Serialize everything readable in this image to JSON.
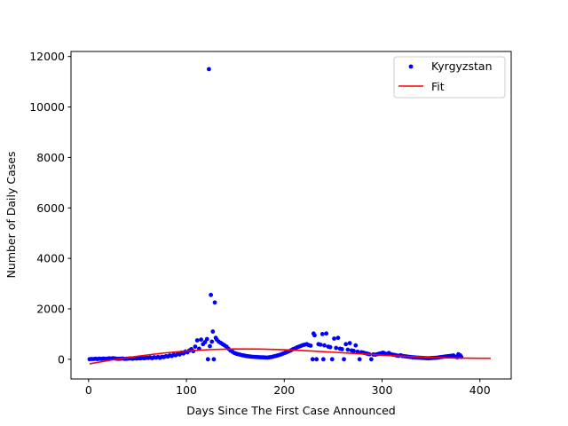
{
  "chart_data": {
    "type": "scatter",
    "title": "",
    "xlabel": "Days Since The First Case Announced",
    "ylabel": "Number of Daily Cases",
    "xlim": [
      -18,
      432
    ],
    "ylim": [
      -780,
      12200
    ],
    "xticks": [
      0,
      100,
      200,
      300,
      400
    ],
    "yticks": [
      0,
      2000,
      4000,
      6000,
      8000,
      10000,
      12000
    ],
    "grid": false,
    "legend_position": "top-right",
    "series": [
      {
        "name": "Kyrgyzstan",
        "kind": "scatter",
        "color": "#0000ff",
        "points": [
          [
            1,
            3
          ],
          [
            3,
            12
          ],
          [
            5,
            8
          ],
          [
            7,
            18
          ],
          [
            9,
            10
          ],
          [
            11,
            25
          ],
          [
            13,
            15
          ],
          [
            15,
            30
          ],
          [
            17,
            20
          ],
          [
            19,
            22
          ],
          [
            21,
            35
          ],
          [
            23,
            28
          ],
          [
            25,
            40
          ],
          [
            27,
            32
          ],
          [
            29,
            20
          ],
          [
            31,
            18
          ],
          [
            33,
            25
          ],
          [
            35,
            30
          ],
          [
            37,
            15
          ],
          [
            39,
            22
          ],
          [
            41,
            28
          ],
          [
            43,
            35
          ],
          [
            45,
            20
          ],
          [
            47,
            40
          ],
          [
            49,
            30
          ],
          [
            51,
            45
          ],
          [
            53,
            38
          ],
          [
            55,
            50
          ],
          [
            57,
            42
          ],
          [
            59,
            60
          ],
          [
            61,
            55
          ],
          [
            63,
            70
          ],
          [
            65,
            45
          ],
          [
            67,
            80
          ],
          [
            69,
            65
          ],
          [
            71,
            90
          ],
          [
            73,
            60
          ],
          [
            75,
            100
          ],
          [
            77,
            85
          ],
          [
            79,
            120
          ],
          [
            81,
            110
          ],
          [
            83,
            150
          ],
          [
            85,
            130
          ],
          [
            87,
            180
          ],
          [
            89,
            160
          ],
          [
            91,
            220
          ],
          [
            93,
            190
          ],
          [
            95,
            260
          ],
          [
            97,
            230
          ],
          [
            99,
            310
          ],
          [
            101,
            280
          ],
          [
            103,
            350
          ],
          [
            105,
            400
          ],
          [
            107,
            320
          ],
          [
            109,
            500
          ],
          [
            111,
            750
          ],
          [
            113,
            420
          ],
          [
            115,
            780
          ],
          [
            117,
            600
          ],
          [
            119,
            680
          ],
          [
            121,
            800
          ],
          [
            122,
            0
          ],
          [
            123,
            11500
          ],
          [
            124,
            520
          ],
          [
            125,
            2550
          ],
          [
            126,
            700
          ],
          [
            127,
            1100
          ],
          [
            128,
            0
          ],
          [
            129,
            2250
          ],
          [
            130,
            850
          ],
          [
            131,
            780
          ],
          [
            133,
            700
          ],
          [
            135,
            650
          ],
          [
            137,
            600
          ],
          [
            139,
            550
          ],
          [
            141,
            500
          ],
          [
            143,
            420
          ],
          [
            145,
            350
          ],
          [
            147,
            300
          ],
          [
            149,
            250
          ],
          [
            151,
            220
          ],
          [
            153,
            200
          ],
          [
            155,
            180
          ],
          [
            157,
            160
          ],
          [
            159,
            150
          ],
          [
            161,
            130
          ],
          [
            163,
            120
          ],
          [
            165,
            110
          ],
          [
            167,
            100
          ],
          [
            169,
            95
          ],
          [
            171,
            90
          ],
          [
            173,
            85
          ],
          [
            175,
            80
          ],
          [
            177,
            78
          ],
          [
            179,
            75
          ],
          [
            181,
            70
          ],
          [
            183,
            68
          ],
          [
            185,
            80
          ],
          [
            187,
            90
          ],
          [
            189,
            110
          ],
          [
            191,
            130
          ],
          [
            193,
            150
          ],
          [
            195,
            170
          ],
          [
            197,
            200
          ],
          [
            199,
            230
          ],
          [
            201,
            260
          ],
          [
            203,
            290
          ],
          [
            205,
            320
          ],
          [
            207,
            360
          ],
          [
            209,
            400
          ],
          [
            211,
            430
          ],
          [
            213,
            470
          ],
          [
            215,
            500
          ],
          [
            217,
            530
          ],
          [
            219,
            560
          ],
          [
            221,
            580
          ],
          [
            223,
            600
          ],
          [
            225,
            560
          ],
          [
            227,
            540
          ],
          [
            229,
            0
          ],
          [
            230,
            1020
          ],
          [
            231,
            950
          ],
          [
            233,
            0
          ],
          [
            235,
            600
          ],
          [
            237,
            580
          ],
          [
            239,
            1000
          ],
          [
            240,
            0
          ],
          [
            241,
            550
          ],
          [
            243,
            1020
          ],
          [
            245,
            500
          ],
          [
            247,
            480
          ],
          [
            249,
            0
          ],
          [
            251,
            820
          ],
          [
            253,
            450
          ],
          [
            255,
            850
          ],
          [
            257,
            420
          ],
          [
            259,
            400
          ],
          [
            261,
            0
          ],
          [
            263,
            600
          ],
          [
            265,
            380
          ],
          [
            267,
            640
          ],
          [
            269,
            350
          ],
          [
            271,
            330
          ],
          [
            273,
            550
          ],
          [
            275,
            300
          ],
          [
            277,
            0
          ],
          [
            279,
            280
          ],
          [
            281,
            260
          ],
          [
            283,
            240
          ],
          [
            285,
            220
          ],
          [
            287,
            200
          ],
          [
            289,
            0
          ],
          [
            291,
            190
          ],
          [
            293,
            180
          ],
          [
            295,
            200
          ],
          [
            297,
            220
          ],
          [
            299,
            240
          ],
          [
            301,
            260
          ],
          [
            303,
            230
          ],
          [
            305,
            210
          ],
          [
            307,
            250
          ],
          [
            309,
            200
          ],
          [
            311,
            180
          ],
          [
            313,
            170
          ],
          [
            315,
            150
          ],
          [
            317,
            140
          ],
          [
            319,
            160
          ],
          [
            321,
            130
          ],
          [
            323,
            120
          ],
          [
            325,
            110
          ],
          [
            327,
            100
          ],
          [
            329,
            90
          ],
          [
            331,
            80
          ],
          [
            333,
            75
          ],
          [
            335,
            70
          ],
          [
            337,
            65
          ],
          [
            339,
            60
          ],
          [
            341,
            55
          ],
          [
            343,
            50
          ],
          [
            345,
            45
          ],
          [
            347,
            40
          ],
          [
            349,
            45
          ],
          [
            351,
            50
          ],
          [
            353,
            55
          ],
          [
            355,
            60
          ],
          [
            357,
            70
          ],
          [
            359,
            80
          ],
          [
            361,
            90
          ],
          [
            363,
            100
          ],
          [
            365,
            110
          ],
          [
            367,
            120
          ],
          [
            369,
            130
          ],
          [
            371,
            140
          ],
          [
            373,
            150
          ],
          [
            375,
            100
          ],
          [
            377,
            80
          ],
          [
            378,
            200
          ],
          [
            379,
            120
          ],
          [
            380,
            150
          ],
          [
            381,
            90
          ]
        ]
      },
      {
        "name": "Fit",
        "kind": "line",
        "color": "#ff0000",
        "points": [
          [
            1,
            -180
          ],
          [
            25,
            -20
          ],
          [
            50,
            120
          ],
          [
            75,
            240
          ],
          [
            100,
            330
          ],
          [
            125,
            385
          ],
          [
            150,
            410
          ],
          [
            175,
            405
          ],
          [
            200,
            380
          ],
          [
            225,
            335
          ],
          [
            250,
            280
          ],
          [
            275,
            225
          ],
          [
            300,
            165
          ],
          [
            325,
            115
          ],
          [
            350,
            75
          ],
          [
            375,
            50
          ],
          [
            400,
            40
          ],
          [
            411,
            40
          ]
        ]
      }
    ]
  }
}
